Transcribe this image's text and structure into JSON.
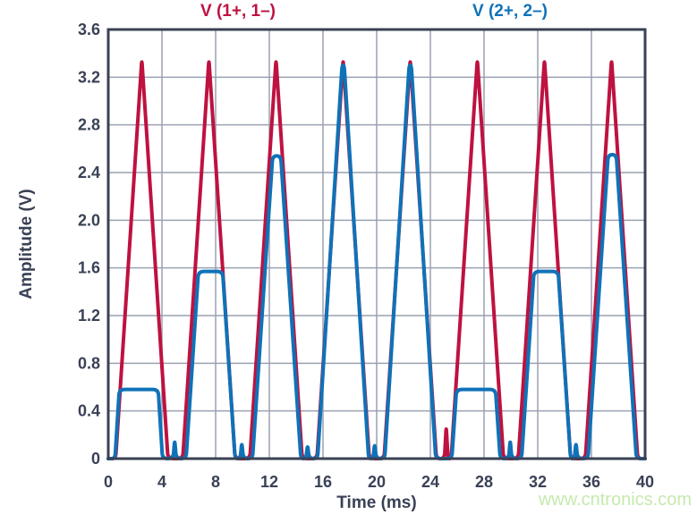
{
  "watermark": {
    "text": "www.cntronics.com",
    "color": "#c6e9ae"
  },
  "colors": {
    "background": "#ffffff",
    "frame": "#3a4154",
    "grid": "#9aa1b1",
    "text": "#3a4156"
  },
  "chart_data": {
    "type": "line",
    "title": "",
    "xlabel": "Time (ms)",
    "ylabel": "Amplitude (V)",
    "xlim": [
      0,
      40
    ],
    "ylim": [
      0,
      3.6
    ],
    "grid": true,
    "legend_position": "top",
    "x_ticks": [
      0,
      4,
      8,
      12,
      16,
      20,
      24,
      28,
      32,
      36,
      40
    ],
    "x_tick_labels": [
      "0",
      "4",
      "8",
      "12",
      "16",
      "20",
      "24",
      "28",
      "32",
      "36",
      "40"
    ],
    "y_ticks": [
      0,
      0.4,
      0.8,
      1.2,
      1.6,
      2.0,
      2.4,
      2.8,
      3.2,
      3.6
    ],
    "y_tick_labels": [
      "0",
      "0.4",
      "0.8",
      "1.2",
      "1.6",
      "2.0",
      "2.4",
      "2.8",
      "3.2",
      "3.6"
    ],
    "series": [
      {
        "name": "V (1+, 1–)",
        "color": "#be1240",
        "peak_value": 3.35,
        "period_ms": 5,
        "points": [
          [
            0,
            0
          ],
          [
            0.55,
            0
          ],
          [
            2.5,
            3.35
          ],
          [
            4.45,
            0
          ],
          [
            5.55,
            0
          ],
          [
            7.5,
            3.35
          ],
          [
            9.45,
            0
          ],
          [
            10.55,
            0
          ],
          [
            12.5,
            3.35
          ],
          [
            14.45,
            0
          ],
          [
            15.55,
            0
          ],
          [
            17.5,
            3.35
          ],
          [
            19.45,
            0
          ],
          [
            20.55,
            0
          ],
          [
            22.5,
            3.35
          ],
          [
            24.45,
            0
          ],
          [
            25.05,
            0
          ],
          [
            25.18,
            0.27
          ],
          [
            25.32,
            0
          ],
          [
            25.55,
            0
          ],
          [
            27.5,
            3.35
          ],
          [
            29.45,
            0
          ],
          [
            30.55,
            0
          ],
          [
            32.5,
            3.35
          ],
          [
            34.45,
            0
          ],
          [
            35.55,
            0
          ],
          [
            37.5,
            3.35
          ],
          [
            39.45,
            0
          ],
          [
            40,
            0
          ]
        ]
      },
      {
        "name": "V (2+, 2–)",
        "color": "#0f72b8",
        "clip_levels": [
          0.58,
          1.57,
          2.54,
          3.3,
          3.3,
          0.58,
          1.57,
          2.55
        ],
        "points": [
          [
            0,
            0
          ],
          [
            0.5,
            0
          ],
          [
            0.82,
            0.58
          ],
          [
            3.72,
            0.58
          ],
          [
            4.04,
            0
          ],
          [
            4.83,
            0
          ],
          [
            4.95,
            0.16
          ],
          [
            5.07,
            0
          ],
          [
            5.8,
            0
          ],
          [
            6.72,
            1.57
          ],
          [
            8.52,
            1.57
          ],
          [
            9.45,
            0
          ],
          [
            9.83,
            0
          ],
          [
            9.95,
            0.14
          ],
          [
            10.07,
            0
          ],
          [
            10.75,
            0
          ],
          [
            12.25,
            2.54
          ],
          [
            12.85,
            2.54
          ],
          [
            14.35,
            0
          ],
          [
            14.73,
            0
          ],
          [
            14.85,
            0.12
          ],
          [
            14.97,
            0
          ],
          [
            15.6,
            0
          ],
          [
            17.42,
            3.3
          ],
          [
            17.58,
            3.3
          ],
          [
            19.4,
            0
          ],
          [
            19.73,
            0
          ],
          [
            19.85,
            0.13
          ],
          [
            19.97,
            0
          ],
          [
            20.6,
            0
          ],
          [
            22.42,
            3.3
          ],
          [
            22.58,
            3.3
          ],
          [
            24.4,
            0
          ],
          [
            25.6,
            0
          ],
          [
            25.95,
            0.58
          ],
          [
            28.85,
            0.58
          ],
          [
            29.2,
            0
          ],
          [
            29.83,
            0
          ],
          [
            29.95,
            0.16
          ],
          [
            30.07,
            0
          ],
          [
            30.8,
            0
          ],
          [
            31.72,
            1.57
          ],
          [
            33.52,
            1.57
          ],
          [
            34.45,
            0
          ],
          [
            34.73,
            0
          ],
          [
            34.85,
            0.14
          ],
          [
            34.97,
            0
          ],
          [
            35.75,
            0
          ],
          [
            37.25,
            2.55
          ],
          [
            37.85,
            2.55
          ],
          [
            39.35,
            0
          ],
          [
            40,
            0
          ]
        ]
      }
    ]
  }
}
